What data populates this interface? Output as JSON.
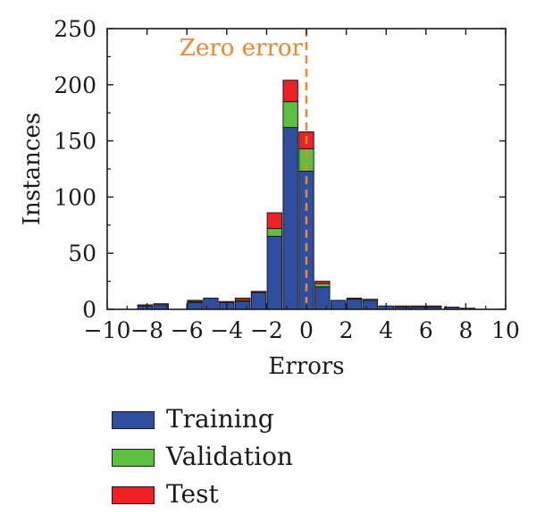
{
  "chart_data": {
    "type": "bar",
    "stacked": true,
    "xlabel": "Errors",
    "ylabel": "Instances",
    "xlim": [
      -10,
      10
    ],
    "ylim": [
      0,
      250
    ],
    "xticks": [
      "−10",
      "−8",
      "−6",
      "−4",
      "−2",
      "0",
      "2",
      "4",
      "6",
      "8",
      "10"
    ],
    "xtick_values": [
      -10,
      -8,
      -6,
      -4,
      -2,
      0,
      2,
      4,
      6,
      8,
      10
    ],
    "yticks": [
      "0",
      "50",
      "100",
      "150",
      "200",
      "250"
    ],
    "ytick_values": [
      0,
      50,
      100,
      150,
      200,
      250
    ],
    "bin_centers": [
      -9.1,
      -8.1,
      -7.3,
      -6.4,
      -5.6,
      -4.8,
      -4.0,
      -3.2,
      -2.4,
      -1.6,
      -0.8,
      0.0,
      0.8,
      1.6,
      2.4,
      3.2,
      4.0,
      4.8,
      5.6,
      6.4,
      7.3,
      8.1,
      8.9
    ],
    "series": [
      {
        "name": "Training",
        "color": "#2f4ea0",
        "values": [
          0,
          3,
          4,
          0,
          6,
          10,
          6,
          7,
          15,
          65,
          162,
          123,
          20,
          8,
          9,
          8,
          3,
          2,
          2,
          2,
          2,
          1,
          0
        ]
      },
      {
        "name": "Validation",
        "color": "#5cbf3f",
        "values": [
          0,
          0,
          0,
          0,
          1,
          0,
          0,
          1,
          0,
          7,
          23,
          20,
          3,
          0,
          0,
          1,
          0,
          0,
          0,
          0,
          0,
          0,
          0
        ]
      },
      {
        "name": "Test",
        "color": "#ee2224",
        "values": [
          0,
          1,
          1,
          0,
          1,
          0,
          1,
          2,
          1,
          14,
          19,
          15,
          2,
          0,
          1,
          0,
          0,
          1,
          1,
          1,
          0,
          0,
          0
        ]
      }
    ],
    "annotation": {
      "text": "Zero error",
      "x": 0,
      "color": "#f0862a",
      "style": "dashed"
    },
    "legend_position": "bottom"
  }
}
